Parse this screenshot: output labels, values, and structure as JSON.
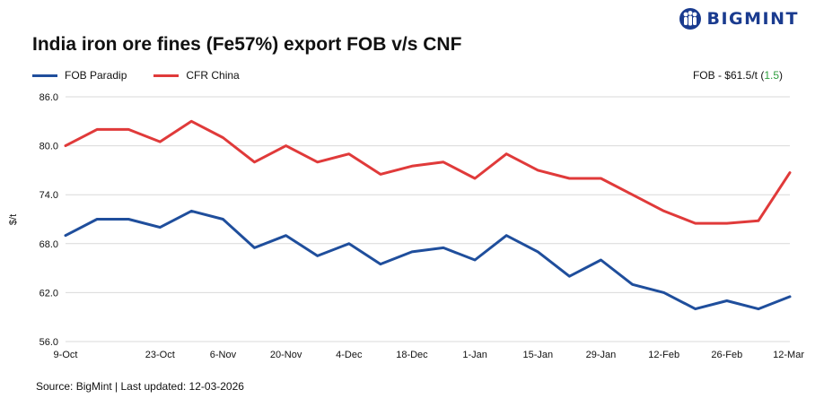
{
  "brand": {
    "name": "BIGMINT",
    "color": "#1a3b8f"
  },
  "header": {
    "note_prefix": "FOB - $61.5/t (",
    "note_change": "1.5",
    "note_suffix": ")",
    "change_color": "#2e9e3e"
  },
  "footer": {
    "source": "Source: BigMint | Last updated: 12-03-2026"
  },
  "chart_data": {
    "type": "line",
    "title": "India iron ore fines (Fe57%) export FOB v/s CNF",
    "xlabel": "",
    "ylabel": "$/t",
    "ylim": [
      56.0,
      86.0
    ],
    "yticks": [
      "56.0",
      "62.0",
      "68.0",
      "74.0",
      "80.0",
      "86.0"
    ],
    "xticks": [
      "9-Oct",
      "23-Oct",
      "6-Nov",
      "20-Nov",
      "4-Dec",
      "18-Dec",
      "1-Jan",
      "15-Jan",
      "29-Jan",
      "12-Feb",
      "26-Feb",
      "12-Mar"
    ],
    "grid": true,
    "legend_position": "top-left",
    "x": [
      "9-Oct",
      "12-Oct",
      "16-Oct",
      "23-Oct",
      "30-Oct",
      "6-Nov",
      "13-Nov",
      "20-Nov",
      "27-Nov",
      "4-Dec",
      "11-Dec",
      "18-Dec",
      "25-Dec",
      "1-Jan",
      "8-Jan",
      "15-Jan",
      "22-Jan",
      "29-Jan",
      "5-Feb",
      "12-Feb",
      "19-Feb",
      "26-Feb",
      "5-Mar",
      "12-Mar"
    ],
    "series": [
      {
        "name": "FOB Paradip",
        "color": "#1f4e9c",
        "values": [
          69.0,
          71.0,
          71.0,
          70.0,
          72.0,
          71.0,
          67.5,
          69.0,
          66.5,
          68.0,
          65.5,
          67.0,
          67.5,
          66.0,
          69.0,
          67.0,
          64.0,
          66.0,
          63.0,
          62.0,
          60.0,
          61.0,
          60.0,
          61.5
        ]
      },
      {
        "name": "CFR China",
        "color": "#e03a3a",
        "values": [
          80.0,
          82.0,
          82.0,
          80.5,
          83.0,
          81.0,
          78.0,
          80.0,
          78.0,
          79.0,
          76.5,
          77.5,
          78.0,
          76.0,
          79.0,
          77.0,
          76.0,
          76.0,
          74.0,
          72.0,
          70.5,
          70.5,
          70.8,
          76.7
        ]
      }
    ]
  }
}
